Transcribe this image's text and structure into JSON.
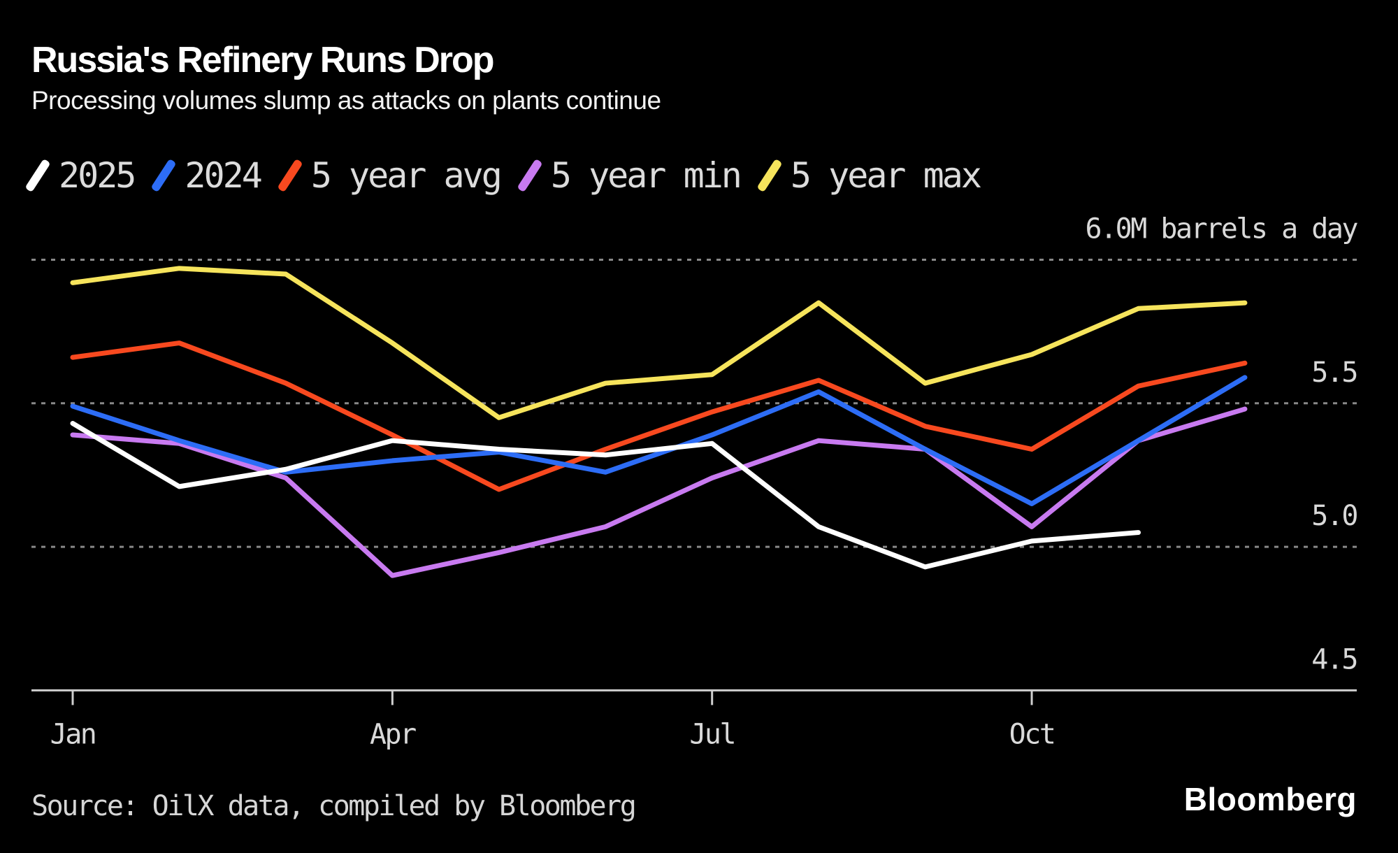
{
  "header": {
    "title": "Russia's Refinery Runs Drop",
    "subtitle": "Processing volumes slump as attacks on plants continue"
  },
  "legend": [
    {
      "label": "2025",
      "color": "#ffffff"
    },
    {
      "label": "2024",
      "color": "#2d6df6"
    },
    {
      "label": "5 year avg",
      "color": "#f8491f"
    },
    {
      "label": "5 year min",
      "color": "#c87af0"
    },
    {
      "label": "5 year max",
      "color": "#f6e45c"
    }
  ],
  "colors": {
    "background": "#000000",
    "grid": "#888888",
    "axis": "#cfcfcf",
    "tick_label": "#d9d9d9"
  },
  "chart_data": {
    "type": "line",
    "title": "Russia's Refinery Runs Drop",
    "subtitle": "Processing volumes slump as attacks on plants continue",
    "ylabel": "M barrels a day",
    "ylim": [
      4.5,
      6.0
    ],
    "grid": "horizontal-dotted",
    "legend_position": "top",
    "x": [
      "Jan",
      "Feb",
      "Mar",
      "Apr",
      "May",
      "Jun",
      "Jul",
      "Aug",
      "Sep",
      "Oct",
      "Nov",
      "Dec"
    ],
    "x_axis_ticks": [
      "Jan",
      "Apr",
      "Jul",
      "Oct"
    ],
    "yticks": [
      {
        "value": 6.0,
        "label": "6.0M barrels a day"
      },
      {
        "value": 5.5,
        "label": "5.5"
      },
      {
        "value": 5.0,
        "label": "5.0"
      },
      {
        "value": 4.5,
        "label": "4.5"
      }
    ],
    "series": [
      {
        "name": "5 year max",
        "color": "#f6e45c",
        "values": [
          5.92,
          5.97,
          5.95,
          5.71,
          5.45,
          5.57,
          5.6,
          5.85,
          5.57,
          5.67,
          5.83,
          5.85
        ]
      },
      {
        "name": "5 year min",
        "color": "#c87af0",
        "values": [
          5.39,
          5.36,
          5.24,
          4.9,
          4.98,
          5.07,
          5.24,
          5.37,
          5.34,
          5.07,
          5.37,
          5.48
        ]
      },
      {
        "name": "5 year avg",
        "color": "#f8491f",
        "values": [
          5.66,
          5.71,
          5.57,
          5.39,
          5.2,
          5.34,
          5.47,
          5.58,
          5.42,
          5.34,
          5.56,
          5.64
        ]
      },
      {
        "name": "2024",
        "color": "#2d6df6",
        "values": [
          5.49,
          5.37,
          5.26,
          5.3,
          5.33,
          5.26,
          5.39,
          5.54,
          5.34,
          5.15,
          5.37,
          5.59
        ]
      },
      {
        "name": "2025",
        "color": "#ffffff",
        "values": [
          5.43,
          5.21,
          5.27,
          5.37,
          5.34,
          5.32,
          5.36,
          5.07,
          4.93,
          5.02,
          5.05,
          null
        ]
      }
    ]
  },
  "footer": {
    "source": "Source: OilX data, compiled by Bloomberg",
    "brand": "Bloomberg"
  }
}
